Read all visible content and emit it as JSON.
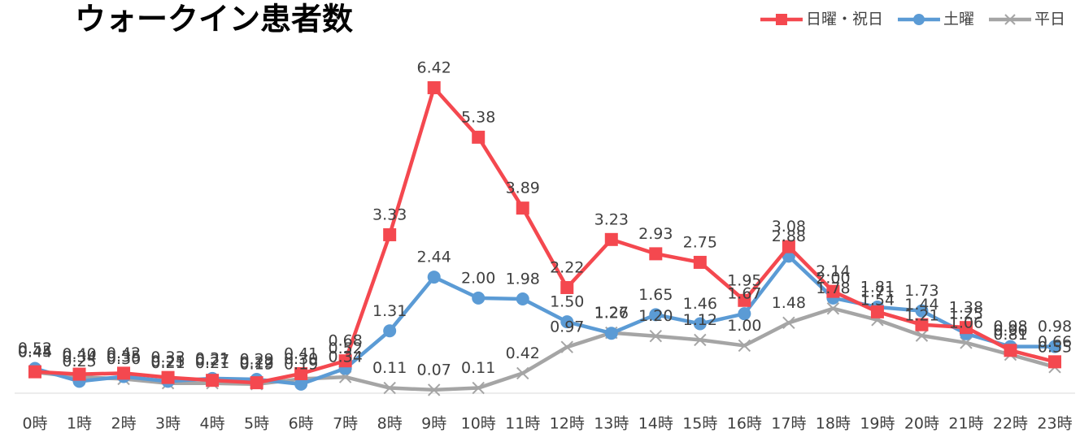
{
  "chart_data": {
    "type": "line",
    "title": "ウォークイン患者数",
    "categories": [
      "0時",
      "1時",
      "2時",
      "3時",
      "4時",
      "5時",
      "6時",
      "7時",
      "8時",
      "9時",
      "10時",
      "11時",
      "12時",
      "13時",
      "14時",
      "15時",
      "16時",
      "17時",
      "18時",
      "19時",
      "20時",
      "21時",
      "22時",
      "23時"
    ],
    "series": [
      {
        "name": "日曜・祝日",
        "color": "#f4484f",
        "marker": "square",
        "values": [
          0.45,
          0.4,
          0.42,
          0.33,
          0.27,
          0.22,
          0.41,
          0.68,
          3.33,
          6.42,
          5.38,
          3.89,
          2.22,
          3.23,
          2.93,
          2.75,
          1.95,
          3.08,
          2.14,
          1.71,
          1.44,
          1.38,
          0.9,
          0.66
        ],
        "value_labels": [
          "0.45",
          "0.40",
          "0.42",
          "0.33",
          "0.27",
          "0.22",
          "0.41",
          "0.68",
          "3.33",
          "6.42",
          "5.38",
          "3.89",
          "2.22",
          "3.23",
          "2.93",
          "2.75",
          "1.95",
          "3.08",
          "2.14",
          "1.71",
          "1.44",
          "1.38",
          "0.90",
          "0.66"
        ]
      },
      {
        "name": "土曜",
        "color": "#5b9bd5",
        "marker": "circle",
        "values": [
          0.52,
          0.25,
          0.35,
          0.25,
          0.31,
          0.29,
          0.19,
          0.52,
          1.31,
          2.44,
          2.0,
          1.98,
          1.5,
          1.26,
          1.65,
          1.46,
          1.67,
          2.88,
          2.0,
          1.81,
          1.73,
          1.25,
          0.98,
          0.98
        ],
        "value_labels": [
          "0.52",
          "0.25",
          "0.35",
          "0.25",
          "0.31",
          "0.29",
          "0.19",
          "0.52",
          "1.31",
          "2.44",
          "2.00",
          "1.98",
          "1.50",
          "1.26",
          "1.65",
          "1.46",
          "1.67",
          "2.88",
          "2.00",
          "1.81",
          "1.73",
          "1.25",
          "0.98",
          "0.98"
        ]
      },
      {
        "name": "平日",
        "color": "#a5a5a5",
        "marker": "x",
        "values": [
          0.44,
          0.34,
          0.3,
          0.21,
          0.21,
          0.19,
          0.3,
          0.34,
          0.11,
          0.07,
          0.11,
          0.42,
          0.97,
          1.27,
          1.2,
          1.12,
          1.0,
          1.48,
          1.78,
          1.54,
          1.21,
          1.06,
          0.81,
          0.55
        ],
        "value_labels": [
          "0.44",
          "0.34",
          "0.30",
          "0.21",
          "0.21",
          "0.19",
          "0.30",
          "0.34",
          "0.11",
          "0.07",
          "0.11",
          "0.42",
          "0.97",
          "1.27",
          "1.20",
          "1.12",
          "1.00",
          "1.48",
          "1.78",
          "1.54",
          "1.21",
          "1.06",
          "0.81",
          "0.55"
        ]
      }
    ],
    "ylim": [
      0,
      7
    ],
    "legend": "top-right"
  }
}
